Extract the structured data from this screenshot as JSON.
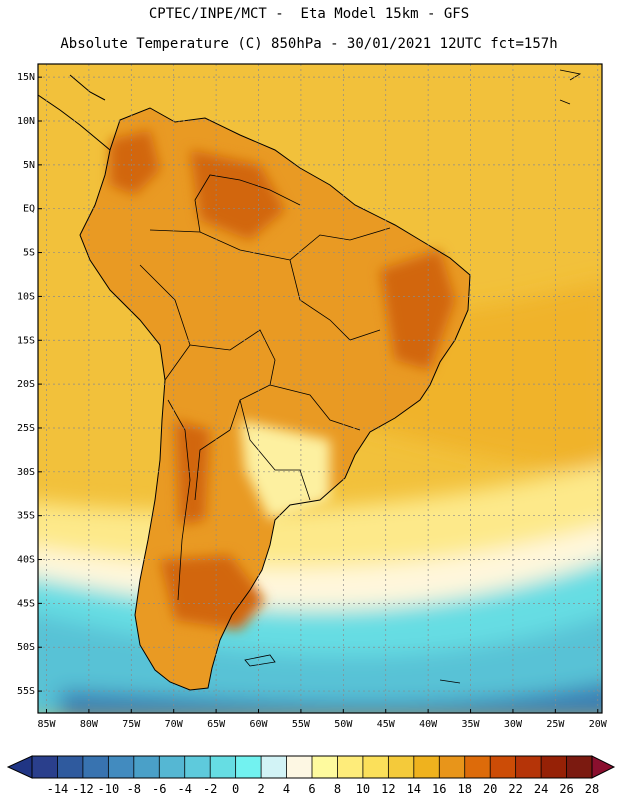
{
  "header": {
    "line1": "CPTEC/INPE/MCT -  Eta Model 15km - GFS",
    "line2": "Absolute Temperature (C) 850hPa - 30/01/2021 12UTC fct=157h"
  },
  "axes": {
    "lat_labels": [
      "15N",
      "10N",
      "5N",
      "EQ",
      "5S",
      "10S",
      "15S",
      "20S",
      "25S",
      "30S",
      "35S",
      "40S",
      "45S",
      "50S",
      "55S"
    ],
    "lat_values": [
      15,
      10,
      5,
      0,
      -5,
      -10,
      -15,
      -20,
      -25,
      -30,
      -35,
      -40,
      -45,
      -50,
      -55
    ],
    "lon_labels": [
      "85W",
      "80W",
      "75W",
      "70W",
      "65W",
      "60W",
      "55W",
      "50W",
      "45W",
      "40W",
      "35W",
      "30W",
      "25W",
      "20W"
    ],
    "lon_values": [
      -85,
      -80,
      -75,
      -70,
      -65,
      -60,
      -55,
      -50,
      -45,
      -40,
      -35,
      -30,
      -25,
      -20
    ],
    "lat_range": [
      -57.5,
      16.5
    ],
    "lon_range": [
      -86.0,
      -19.5
    ]
  },
  "colorbar": {
    "unit": "C",
    "ticks": [
      "-14",
      "-12",
      "-10",
      "-8",
      "-6",
      "-4",
      "-2",
      "0",
      "2",
      "4",
      "6",
      "8",
      "10",
      "12",
      "14",
      "16",
      "18",
      "20",
      "22",
      "24",
      "26",
      "28"
    ],
    "colors": [
      "#2a3f8c",
      "#2f5a9e",
      "#3873b0",
      "#428bbf",
      "#4aa0c8",
      "#55b7d3",
      "#5ecadc",
      "#66dde3",
      "#72f2f0",
      "#d2f3f6",
      "#fdf7e3",
      "#fefa9e",
      "#feec7a",
      "#fbe05a",
      "#f4ca3a",
      "#efb21e",
      "#e8951a",
      "#dd6b0a",
      "#cc4c06",
      "#b53408",
      "#962106",
      "#7b1a10"
    ],
    "under_color": "#203584",
    "over_color": "#8a0f2e"
  },
  "map": {
    "ocean_base_color": "#f2c13b",
    "land_base_color": "#e99a23",
    "hot_color": "#d2660c",
    "cold_water_color": "#58c2d6",
    "deep_cold_color": "#3b7fb4"
  }
}
